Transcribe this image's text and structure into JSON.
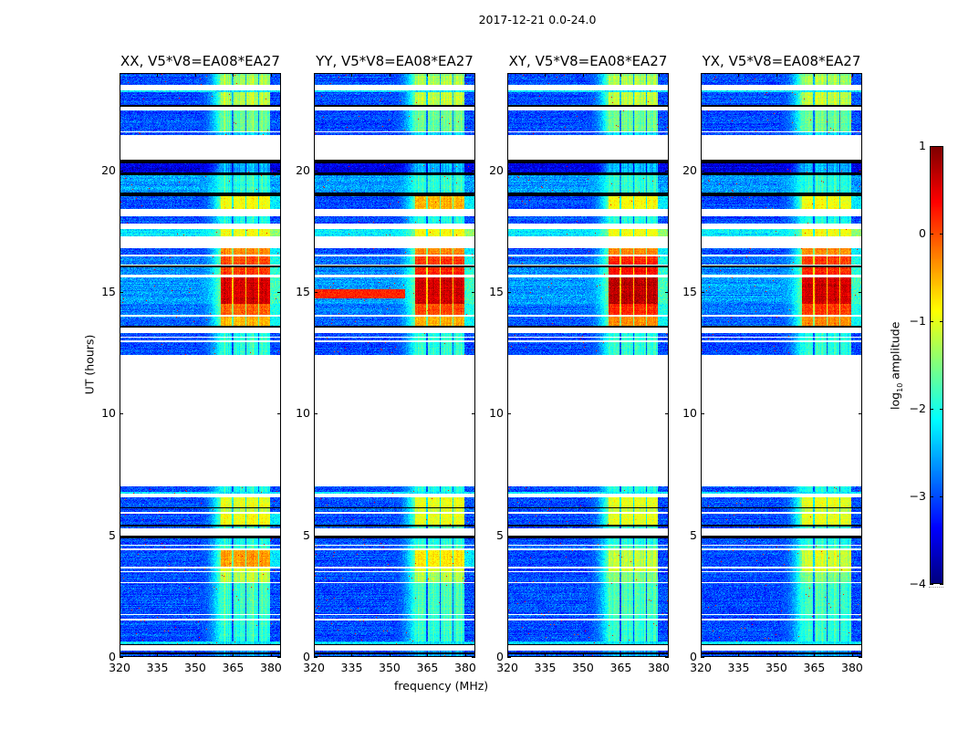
{
  "figure": {
    "suptitle": "2017-12-21 0.0-24.0",
    "ylabel": "UT (hours)",
    "xlabel": "frequency (MHz)",
    "colorbar_label_main": "log",
    "colorbar_label_sub": "10",
    "colorbar_label_tail": " amplitude"
  },
  "chart_data": {
    "type": "heatmap",
    "colormap": "jet",
    "xlim": [
      320,
      384
    ],
    "ylim": [
      0,
      24
    ],
    "clim": [
      -4,
      1
    ],
    "xticks": [
      "320",
      "335",
      "350",
      "365",
      "380"
    ],
    "xtick_values": [
      320,
      335,
      350,
      365,
      380
    ],
    "yticks": [
      "0",
      "5",
      "10",
      "15",
      "20"
    ],
    "ytick_values": [
      0,
      5,
      10,
      15,
      20
    ],
    "colorbar_ticks": [
      "1",
      "0",
      "−1",
      "−2",
      "−3",
      "−4"
    ],
    "colorbar_tick_values": [
      1,
      0,
      -1,
      -2,
      -3,
      -4
    ],
    "panels": [
      {
        "title": "XX, V5*V8=EA08*EA27",
        "pol": 0
      },
      {
        "title": "YY, V5*V8=EA08*EA27",
        "pol": 1
      },
      {
        "title": "XY, V5*V8=EA08*EA27",
        "pol": 2
      },
      {
        "title": "YX, V5*V8=EA08*EA27",
        "pol": 3
      }
    ],
    "rfi_subbands_mhz": [
      [
        360.3,
        364.6
      ],
      [
        365.2,
        369.8
      ],
      [
        370.3,
        375.0
      ],
      [
        375.5,
        379.8
      ]
    ],
    "segments_note": "[t0_hours, t1_hours, kind(d=data,f=flagged,k=zero), background_log_amp, band_log_amp (single or per-pol XX,YY,XY,YX)]",
    "segments": [
      [
        0,
        0.12,
        "d",
        -3,
        -2.6
      ],
      [
        0.12,
        0.2,
        "k"
      ],
      [
        0.2,
        0.27,
        "d",
        -3,
        -2.6
      ],
      [
        0.27,
        0.47,
        "f"
      ],
      [
        0.47,
        0.52,
        "k"
      ],
      [
        0.52,
        0.65,
        "d",
        -2.2,
        -2.2
      ],
      [
        0.65,
        1.5,
        "d",
        -3,
        -1.9
      ],
      [
        1.5,
        1.58,
        "f"
      ],
      [
        1.58,
        1.72,
        "d",
        -3,
        -1.9
      ],
      [
        1.72,
        1.78,
        "f"
      ],
      [
        1.78,
        3.02,
        "d",
        -3,
        -1.8
      ],
      [
        3.02,
        3.07,
        "f"
      ],
      [
        3.07,
        3.47,
        "d",
        -3,
        [
          -1.2,
          -1.3,
          -1.5,
          -1.5
        ]
      ],
      [
        3.47,
        3.52,
        "f"
      ],
      [
        3.52,
        3.65,
        "d",
        -3,
        -1.0
      ],
      [
        3.65,
        3.7,
        "f"
      ],
      [
        3.7,
        4.4,
        "d",
        -3,
        [
          -0.4,
          -0.8,
          -1.2,
          -1.1
        ]
      ],
      [
        4.4,
        4.45,
        "f"
      ],
      [
        4.45,
        4.58,
        "d",
        -2.9,
        -1.8
      ],
      [
        4.58,
        4.63,
        "f"
      ],
      [
        4.63,
        4.88,
        "d",
        -3,
        -2.0
      ],
      [
        4.88,
        5.0,
        "k"
      ],
      [
        5.0,
        5.3,
        "f"
      ],
      [
        5.3,
        5.38,
        "d",
        -3,
        -1.8
      ],
      [
        5.38,
        5.42,
        "k"
      ],
      [
        5.42,
        5.9,
        "d",
        -3,
        [
          -0.9,
          -1.0,
          -1.0,
          -1.0
        ]
      ],
      [
        5.9,
        5.95,
        "f"
      ],
      [
        5.95,
        6.1,
        "d",
        -3,
        -1.2
      ],
      [
        6.1,
        6.15,
        "k"
      ],
      [
        6.15,
        6.55,
        "d",
        -3,
        -1.0
      ],
      [
        6.55,
        6.7,
        "f"
      ],
      [
        6.7,
        6.8,
        "d",
        -2.2,
        -2.2
      ],
      [
        6.8,
        7.0,
        "d",
        -3,
        -2.0
      ],
      [
        7.0,
        12.4,
        "f"
      ],
      [
        12.4,
        12.95,
        "d",
        -3,
        -1.9
      ],
      [
        12.95,
        13.0,
        "f"
      ],
      [
        13.0,
        13.12,
        "d",
        -3,
        -1.9
      ],
      [
        13.12,
        13.17,
        "f"
      ],
      [
        13.17,
        13.3,
        "d",
        -3,
        -2.0
      ],
      [
        13.3,
        13.55,
        "f"
      ],
      [
        13.55,
        13.62,
        "k"
      ],
      [
        13.62,
        14.0,
        "d",
        -2.9,
        [
          -0.5,
          -0.5,
          -0.3,
          -0.3
        ]
      ],
      [
        14.0,
        14.05,
        "f"
      ],
      [
        14.05,
        14.5,
        "d",
        -2.8,
        [
          -0.1,
          0.0,
          0.2,
          0.1
        ]
      ],
      [
        14.5,
        15.6,
        "d",
        -2.6,
        [
          0.6,
          0.6,
          0.7,
          0.6
        ]
      ],
      [
        15.6,
        15.7,
        "f"
      ],
      [
        15.7,
        16.0,
        "d",
        -2.7,
        [
          0.1,
          0.2,
          0.3,
          0.2
        ]
      ],
      [
        16.0,
        16.08,
        "k"
      ],
      [
        16.08,
        16.13,
        "f"
      ],
      [
        16.13,
        16.45,
        "d",
        -2.8,
        [
          0.0,
          0.1,
          0.2,
          0.1
        ]
      ],
      [
        16.45,
        16.55,
        "f"
      ],
      [
        16.55,
        16.8,
        "d",
        -3,
        -0.3
      ],
      [
        16.8,
        17.3,
        "f"
      ],
      [
        17.3,
        17.6,
        "d",
        -2.2,
        -0.9
      ],
      [
        17.6,
        17.8,
        "f"
      ],
      [
        17.8,
        18.1,
        "d",
        -3,
        -2.0
      ],
      [
        18.1,
        18.4,
        "f"
      ],
      [
        18.4,
        18.95,
        "d",
        -3,
        [
          -0.9,
          -0.5,
          -0.9,
          -0.9
        ]
      ],
      [
        18.95,
        19.1,
        "k"
      ],
      [
        19.1,
        19.8,
        "d",
        -2.6,
        -1.9
      ],
      [
        19.8,
        19.9,
        "k"
      ],
      [
        19.9,
        20.3,
        "d",
        -3.5,
        -2.5
      ],
      [
        20.3,
        20.45,
        "k"
      ],
      [
        20.45,
        21.45,
        "f"
      ],
      [
        21.45,
        21.55,
        "d",
        -3,
        -2.3
      ],
      [
        21.55,
        21.6,
        "f"
      ],
      [
        21.6,
        22.45,
        "d",
        -3,
        -1.6
      ],
      [
        22.45,
        22.6,
        "f"
      ],
      [
        22.6,
        22.7,
        "k"
      ],
      [
        22.7,
        23.2,
        "d",
        -3,
        -1.2
      ],
      [
        23.2,
        23.3,
        "d",
        -2.2,
        -2.2
      ],
      [
        23.3,
        23.5,
        "f"
      ],
      [
        23.5,
        23.9,
        "d",
        -3,
        -1.3
      ],
      [
        23.9,
        24,
        "d",
        -3,
        -1.5
      ]
    ],
    "extra_rfi": [
      {
        "pol": 1,
        "t": [
          14.75,
          15.1
        ],
        "f": [
          320,
          356
        ],
        "level": 0.2
      }
    ]
  }
}
